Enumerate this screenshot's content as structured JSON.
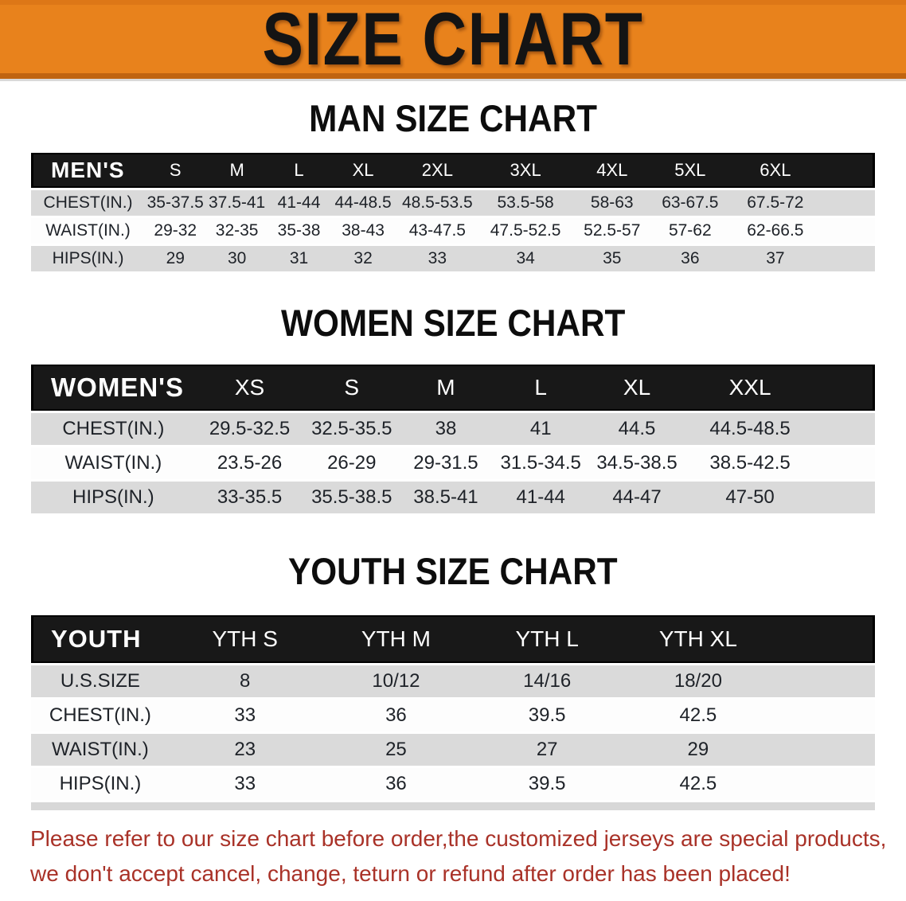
{
  "banner": {
    "title": "SIZE CHART"
  },
  "colors": {
    "banner_orange": "#E8821C",
    "banner_border_top": "#DD7717",
    "banner_border_bottom": "#C06410",
    "banner_text": "#141414",
    "header_black": "#181818",
    "header_text": "#FFFFFF",
    "row_gray": "#DADADA",
    "row_white": "#FDFDFD",
    "table_text": "#1E2228",
    "title_black": "#0D0D0D",
    "disclaimer_red": "#A93228",
    "youth_bottom_strip": "#D8D8D8"
  },
  "chart_data": [
    {
      "type": "table",
      "id": "men",
      "title": "MAN SIZE CHART",
      "corner_label": "MEN'S",
      "columns": [
        "S",
        "M",
        "L",
        "XL",
        "2XL",
        "3XL",
        "4XL",
        "5XL",
        "6XL"
      ],
      "rows": [
        {
          "label": "CHEST(IN.)",
          "values": [
            "35-37.5",
            "37.5-41",
            "41-44",
            "44-48.5",
            "48.5-53.5",
            "53.5-58",
            "58-63",
            "63-67.5",
            "67.5-72"
          ]
        },
        {
          "label": "WAIST(IN.)",
          "values": [
            "29-32",
            "32-35",
            "35-38",
            "38-43",
            "43-47.5",
            "47.5-52.5",
            "52.5-57",
            "57-62",
            "62-66.5"
          ]
        },
        {
          "label": "HIPS(IN.)",
          "values": [
            "29",
            "30",
            "31",
            "32",
            "33",
            "34",
            "35",
            "36",
            "37"
          ]
        }
      ]
    },
    {
      "type": "table",
      "id": "women",
      "title": "WOMEN SIZE CHART",
      "corner_label": "WOMEN'S",
      "columns": [
        "XS",
        "S",
        "M",
        "L",
        "XL",
        "XXL"
      ],
      "rows": [
        {
          "label": "CHEST(IN.)",
          "values": [
            "29.5-32.5",
            "32.5-35.5",
            "38",
            "41",
            "44.5",
            "44.5-48.5"
          ]
        },
        {
          "label": "WAIST(IN.)",
          "values": [
            "23.5-26",
            "26-29",
            "29-31.5",
            "31.5-34.5",
            "34.5-38.5",
            "38.5-42.5"
          ]
        },
        {
          "label": "HIPS(IN.)",
          "values": [
            "33-35.5",
            "35.5-38.5",
            "38.5-41",
            "41-44",
            "44-47",
            "47-50"
          ]
        }
      ]
    },
    {
      "type": "table",
      "id": "youth",
      "title": "YOUTH SIZE CHART",
      "corner_label": "YOUTH",
      "columns": [
        "YTH S",
        "YTH M",
        "YTH L",
        "YTH XL"
      ],
      "rows": [
        {
          "label": "U.S.SIZE",
          "values": [
            "8",
            "10/12",
            "14/16",
            "18/20"
          ]
        },
        {
          "label": "CHEST(IN.)",
          "values": [
            "33",
            "36",
            "39.5",
            "42.5"
          ]
        },
        {
          "label": "WAIST(IN.)",
          "values": [
            "23",
            "25",
            "27",
            "29"
          ]
        },
        {
          "label": "HIPS(IN.)",
          "values": [
            "33",
            "36",
            "39.5",
            "42.5"
          ]
        }
      ]
    }
  ],
  "disclaimer": {
    "line1": "Please refer to our size chart before order,the customized jerseys are special products,",
    "line2": "we don't accept cancel, change, teturn or refund after order has been placed!"
  }
}
